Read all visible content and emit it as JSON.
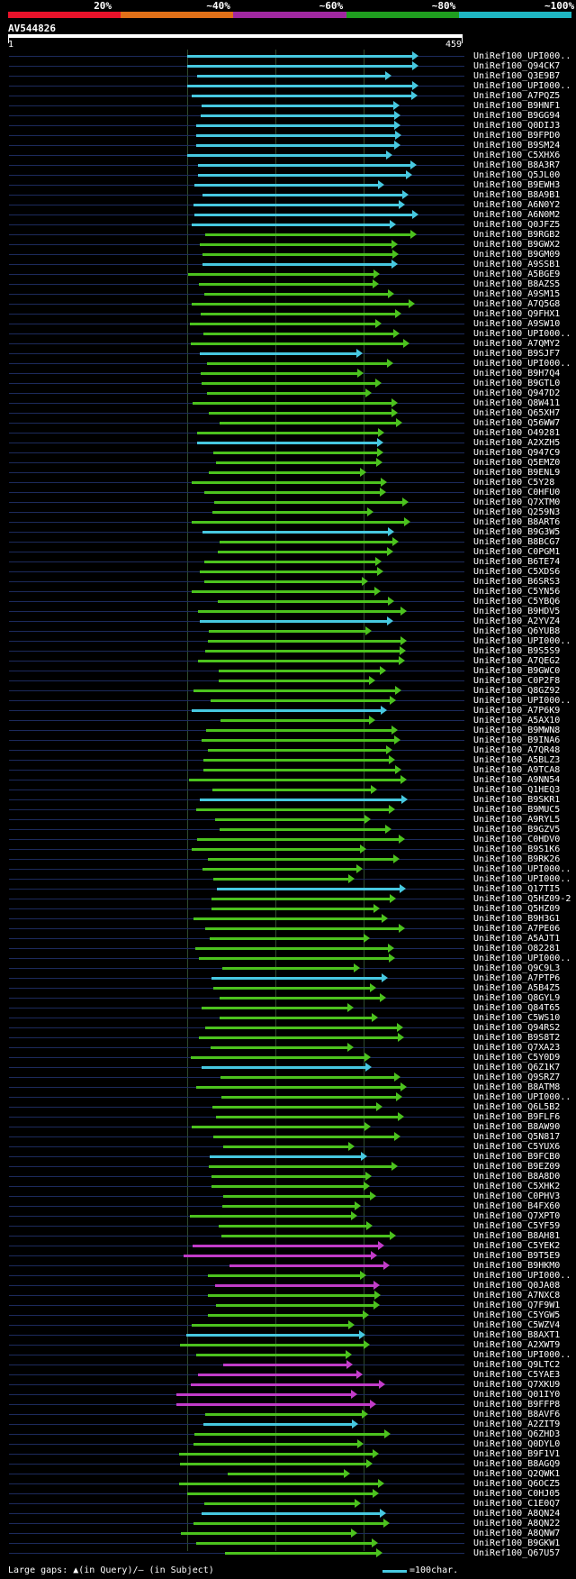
{
  "header": {
    "legend": [
      {
        "label": "20%",
        "color": "#e8122a"
      },
      {
        "label": "~40%",
        "color": "#e07018"
      },
      {
        "label": "~60%",
        "color": "#a028a0"
      },
      {
        "label": "~80%",
        "color": "#1f9d1f"
      },
      {
        "label": "~100%",
        "color": "#1fb6c3"
      }
    ],
    "query_id": "AV544826",
    "query_start": "1",
    "query_end": "459"
  },
  "hits": [
    "UniRef100_UPI000..",
    "UniRef100_Q94CK7",
    "UniRef100_Q3E9B7",
    "UniRef100_UPI000..",
    "UniRef100_A7PQZ5",
    "UniRef100_B9HNF1",
    "UniRef100_B9GG94",
    "UniRef100_Q0DIJ3",
    "UniRef100_B9FPD0",
    "UniRef100_B9SM24",
    "UniRef100_C5XHX6",
    "UniRef100_B8A3R7",
    "UniRef100_Q5JL00",
    "UniRef100_B9EWH3",
    "UniRef100_B8A9B1",
    "UniRef100_A6N0Y2",
    "UniRef100_A6N0M2",
    "UniRef100_Q0JFZ5",
    "UniRef100_B9RGB2",
    "UniRef100_B9GWX2",
    "UniRef100_B9GM09",
    "UniRef100_A9SSB1",
    "UniRef100_A5BGE9",
    "UniRef100_B8AZS5",
    "UniRef100_A9SM15",
    "UniRef100_A7Q5G8",
    "UniRef100_Q9FHX1",
    "UniRef100_A9SW10",
    "UniRef100_UPI000..",
    "UniRef100_A7QMY2",
    "UniRef100_B9SJF7",
    "UniRef100_UPI000..",
    "UniRef100_B9H7Q4",
    "UniRef100_B9GTL0",
    "UniRef100_Q947D2",
    "UniRef100_Q8W411",
    "UniRef100_Q65XH7",
    "UniRef100_Q56WW7",
    "UniRef100_O49281",
    "UniRef100_A2XZH5",
    "UniRef100_Q947C9",
    "UniRef100_Q5EMZ0",
    "UniRef100_B9ENL9",
    "UniRef100_C5Y28",
    "UniRef100_C0HFU0",
    "UniRef100_Q7XTM0",
    "UniRef100_Q259N3",
    "UniRef100_B8ART6",
    "UniRef100_B9G3W5",
    "UniRef100_B8BCG7",
    "UniRef100_C0PGM1",
    "UniRef100_B6TE74",
    "UniRef100_C5XDS6",
    "UniRef100_B6SRS3",
    "UniRef100_C5YN56",
    "UniRef100_C5YBQ6",
    "UniRef100_B9HDV5",
    "UniRef100_A2YVZ4",
    "UniRef100_Q6YUB8",
    "UniRef100_UPI000..",
    "UniRef100_B9S5S9",
    "UniRef100_A7QEG2",
    "UniRef100_B9GWC0",
    "UniRef100_C0P2F8",
    "UniRef100_Q8GZ92",
    "UniRef100_UPI000..",
    "UniRef100_A7P6K9",
    "UniRef100_A5AX10",
    "UniRef100_B9MWN8",
    "UniRef100_B9INA6",
    "UniRef100_A7QR48",
    "UniRef100_A5BLZ3",
    "UniRef100_A9TCA8",
    "UniRef100_A9NN54",
    "UniRef100_Q1HEQ3",
    "UniRef100_B9SKR1",
    "UniRef100_B9MUC5",
    "UniRef100_A9RYL5",
    "UniRef100_B9GZV5",
    "UniRef100_C0HDV0",
    "UniRef100_B9S1K6",
    "UniRef100_B9RK26",
    "UniRef100_UPI000..",
    "UniRef100_UPI000..",
    "UniRef100_Q17TI5",
    "UniRef100_Q5HZ09-2",
    "UniRef100_Q5HZ09",
    "UniRef100_B9H3G1",
    "UniRef100_A7PE06",
    "UniRef100_A5AJT1",
    "UniRef100_O82281",
    "UniRef100_UPI000..",
    "UniRef100_Q9C9L3",
    "UniRef100_A7PTP6",
    "UniRef100_A5B4Z5",
    "UniRef100_Q8GYL9",
    "UniRef100_Q84T65",
    "UniRef100_C5WS10",
    "UniRef100_Q94RS2",
    "UniRef100_B9S8T2",
    "UniRef100_Q7XA23",
    "UniRef100_C5Y0D9",
    "UniRef100_Q6Z1K7",
    "UniRef100_Q9SRZ7",
    "UniRef100_B8ATM8",
    "UniRef100_UPI000..",
    "UniRef100_Q6L5B2",
    "UniRef100_B9FLF6",
    "UniRef100_B8AW90",
    "UniRef100_Q5N817",
    "UniRef100_C5YUX6",
    "UniRef100_B9FCB0",
    "UniRef100_B9EZ09",
    "UniRef100_B8A8D0",
    "UniRef100_C5XHK2",
    "UniRef100_C0PHV3",
    "UniRef100_B4FX60",
    "UniRef100_Q7XPT0",
    "UniRef100_C5YF59",
    "UniRef100_B8AH81",
    "UniRef100_C5YEK2",
    "UniRef100_B9T5E9",
    "UniRef100_B9HKM0",
    "UniRef100_UPI000..",
    "UniRef100_Q0JA08",
    "UniRef100_A7NXC8",
    "UniRef100_Q7F9W1",
    "UniRef100_C5YGW5",
    "UniRef100_C5WZV4",
    "UniRef100_B8AXT1",
    "UniRef100_A2XWT9",
    "UniRef100_UPI000..",
    "UniRef100_Q9LTC2",
    "UniRef100_C5YAE3",
    "UniRef100_Q7XKU9",
    "UniRef100_Q01IY0",
    "UniRef100_B9FFP8",
    "UniRef100_B8AVF6",
    "UniRef100_A2ZIT9",
    "UniRef100_Q6ZHD3",
    "UniRef100_Q0DYL0",
    "UniRef100_B9F1V1",
    "UniRef100_B8AGQ9",
    "UniRef100_Q2QWK1",
    "UniRef100_Q6OCZ5",
    "UniRef100_C0HJ05",
    "UniRef100_C1E0Q7",
    "UniRef100_A8QN24",
    "UniRef100_A8QN22",
    "UniRef100_A8QNW7",
    "UniRef100_B9GKW1",
    "UniRef100_Q67U57"
  ],
  "footer": {
    "large_gaps": "Large gaps: ▲(in Query)/– (in Subject)",
    "scale": "=100char."
  }
}
